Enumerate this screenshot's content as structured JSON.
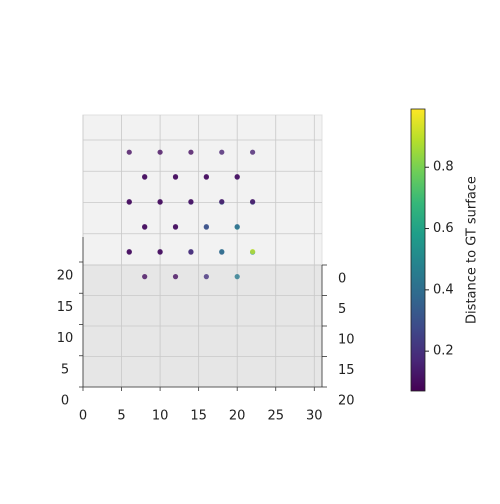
{
  "chart_data": {
    "type": "scatter3d",
    "x": [
      6,
      8,
      10,
      12,
      14,
      16,
      18,
      20,
      22,
      6,
      8,
      10,
      12,
      14,
      16,
      18,
      20,
      22,
      6,
      8,
      10,
      12,
      14,
      16,
      18,
      20,
      22,
      6,
      8,
      10,
      12,
      14,
      16,
      18,
      20,
      22,
      6,
      8,
      10,
      12,
      14,
      16,
      18,
      20,
      22
    ],
    "y": [
      2,
      6,
      2,
      6,
      2,
      6,
      2,
      6,
      2,
      6,
      2,
      6,
      2,
      6,
      2,
      6,
      2,
      6,
      2,
      6,
      2,
      6,
      2,
      6,
      2,
      6,
      2,
      6,
      2,
      6,
      2,
      6,
      2,
      6,
      2,
      6,
      2,
      6,
      2,
      6,
      2,
      6,
      2,
      6,
      2
    ],
    "z": [
      4,
      4,
      4,
      4,
      4,
      4,
      4,
      4,
      4,
      8,
      8,
      8,
      8,
      8,
      8,
      8,
      8,
      8,
      12,
      12,
      12,
      12,
      12,
      12,
      12,
      12,
      12,
      16,
      16,
      16,
      16,
      16,
      16,
      16,
      16,
      16,
      20,
      20,
      20,
      20,
      20,
      20,
      20,
      20,
      20
    ],
    "values": [
      0.1,
      0.1,
      0.12,
      0.1,
      0.15,
      0.2,
      0.35,
      0.45,
      0.55,
      0.1,
      0.1,
      0.1,
      0.12,
      0.2,
      0.3,
      0.4,
      0.5,
      0.9,
      0.1,
      0.1,
      0.1,
      0.1,
      0.2,
      0.3,
      0.35,
      0.4,
      0.3,
      0.1,
      0.1,
      0.1,
      0.1,
      0.1,
      0.1,
      0.12,
      0.15,
      0.12,
      0.1,
      0.1,
      0.1,
      0.1,
      0.1,
      0.1,
      0.15,
      0.1,
      0.15
    ],
    "colormap": "viridis",
    "clim": [
      0.07,
      0.99
    ],
    "colorbar_label": "Distance to GT surface",
    "colorbar_ticks": [
      0.2,
      0.4,
      0.6,
      0.8
    ],
    "xlim": [
      0,
      31
    ],
    "xticks": [
      0,
      5,
      10,
      15,
      20,
      25,
      30
    ],
    "ylim": [
      0,
      20
    ],
    "yticks": [
      0,
      5,
      10,
      15,
      20
    ],
    "zlim": [
      0,
      24
    ],
    "zticks": [
      0,
      5,
      10,
      15,
      20
    ],
    "grid": true
  }
}
